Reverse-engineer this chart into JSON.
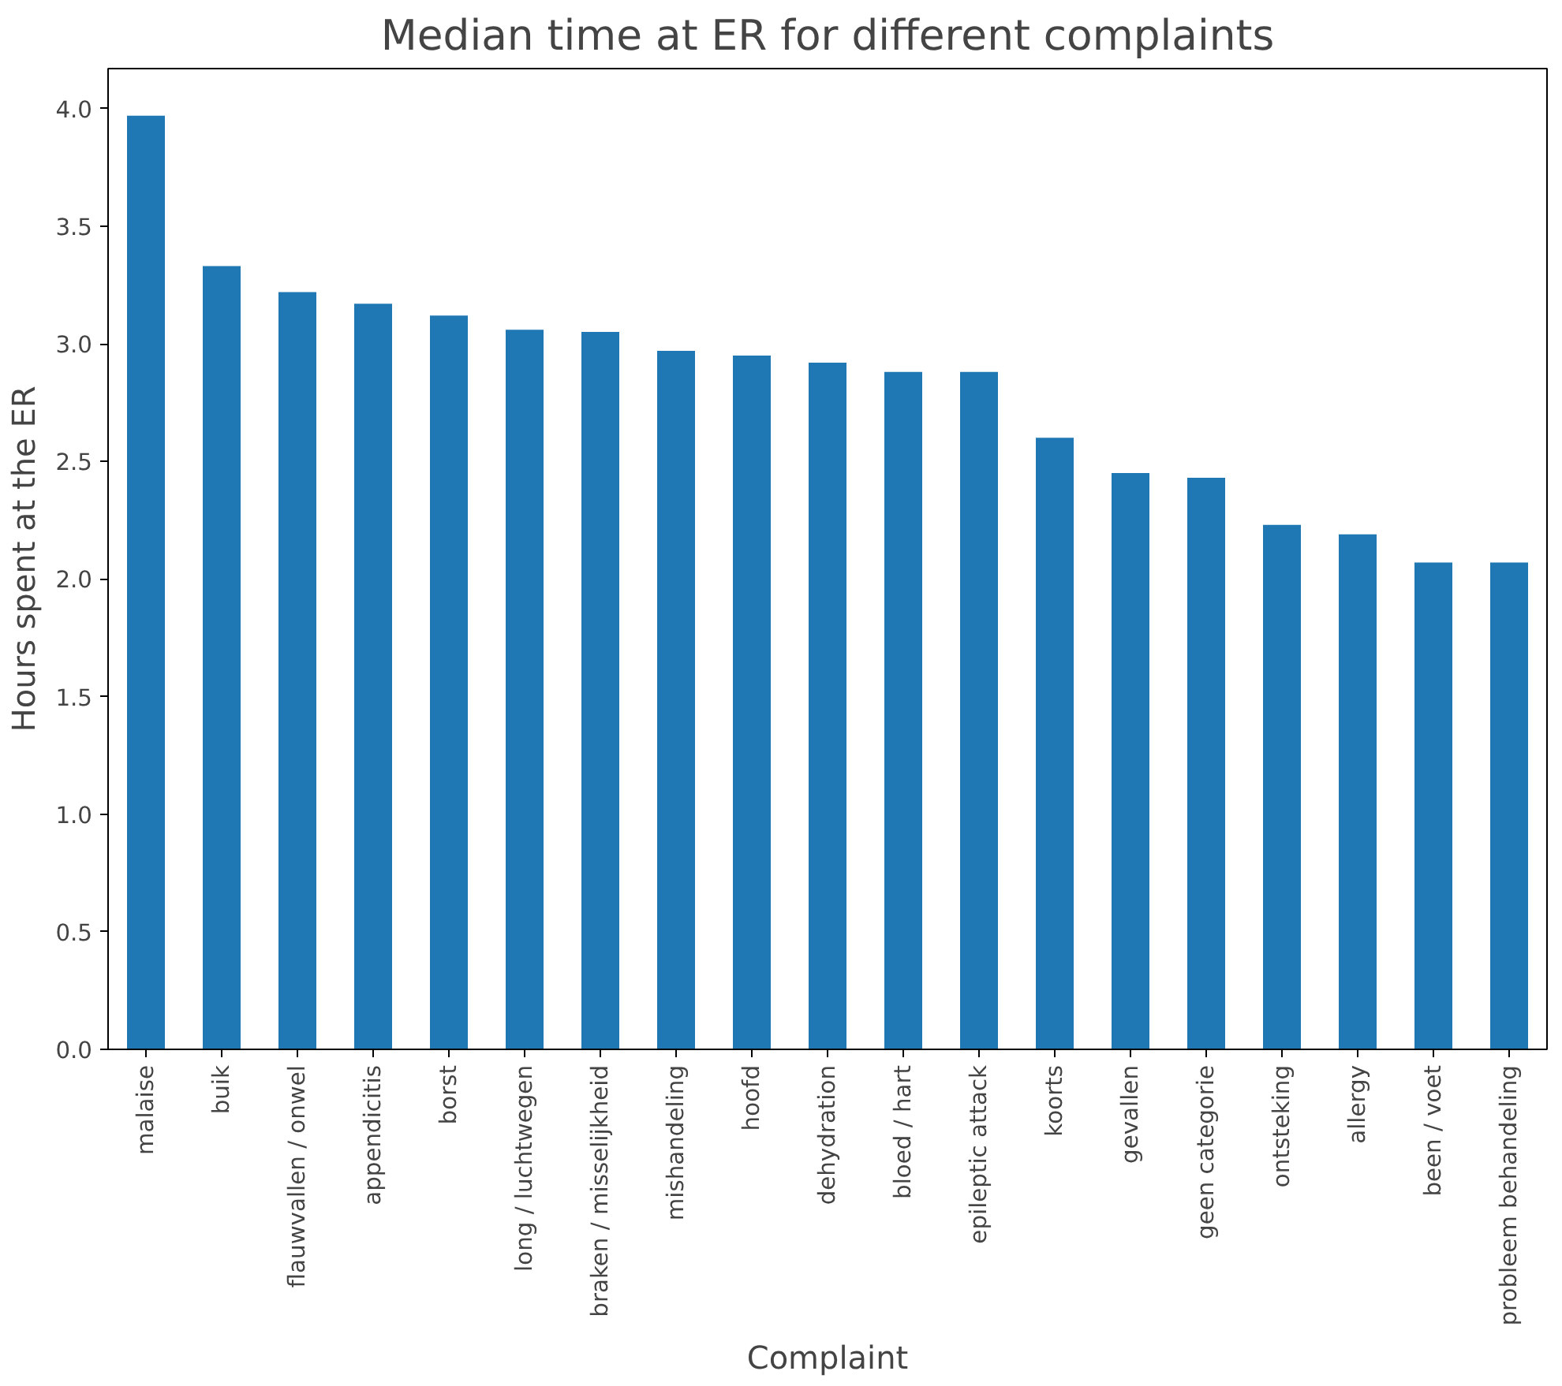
{
  "chart_data": {
    "type": "bar",
    "title": "Median time at ER for different complaints",
    "xlabel": "Complaint",
    "ylabel": "Hours spent at the ER",
    "categories": [
      "malaise",
      "buik",
      "flauwvallen / onwel",
      "appendicitis",
      "borst",
      "long / luchtwegen",
      "braken / misselijkheid",
      "mishandeling",
      "hoofd",
      "dehydration",
      "bloed / hart",
      "epileptic attack",
      "koorts",
      "gevallen",
      "geen categorie",
      "ontsteking",
      "allergy",
      "been / voet",
      "probleem behandeling"
    ],
    "values": [
      3.97,
      3.33,
      3.22,
      3.17,
      3.12,
      3.06,
      3.05,
      2.97,
      2.95,
      2.92,
      2.88,
      2.88,
      2.6,
      2.45,
      2.43,
      2.23,
      2.19,
      2.07,
      2.07
    ],
    "color": "#1f77b4",
    "ylim": [
      0,
      4.17
    ],
    "yticks": [
      {
        "value": 0,
        "label": "0.0"
      },
      {
        "value": 0.5,
        "label": "0.5"
      },
      {
        "value": 1,
        "label": "1.0"
      },
      {
        "value": 1.5,
        "label": "1.5"
      },
      {
        "value": 2,
        "label": "2.0"
      },
      {
        "value": 2.5,
        "label": "2.5"
      },
      {
        "value": 3,
        "label": "3.0"
      },
      {
        "value": 3.5,
        "label": "3.5"
      },
      {
        "value": 4,
        "label": "4.0"
      }
    ],
    "grid": false
  }
}
